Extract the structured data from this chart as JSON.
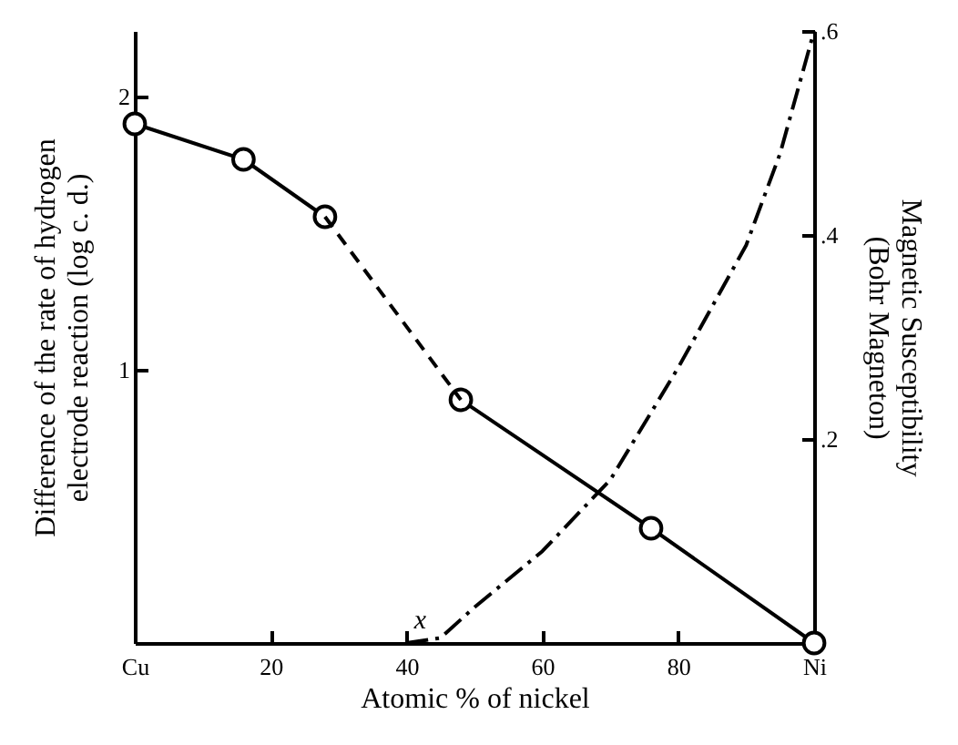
{
  "chart_data": {
    "type": "line",
    "xlabel": "Atomic % of nickel",
    "ylabel": "Difference of the rate of hydrogen electrode reaction (log c. d.)",
    "y2label": "Magnetic Susceptibility (Bohr Magneton)",
    "xlim": [
      0,
      100
    ],
    "xticks": [
      {
        "value": 0,
        "label": "Cu"
      },
      20,
      40,
      60,
      80,
      {
        "value": 100,
        "label": "Ni"
      }
    ],
    "ylim": [
      0,
      2.24
    ],
    "yticks": [
      1,
      2
    ],
    "y2lim": [
      0,
      0.6
    ],
    "y2ticks": [
      {
        "value": 0.2,
        "label": ".2"
      },
      {
        "value": 0.4,
        "label": ".4"
      },
      {
        "value": 0.6,
        "label": ".6"
      }
    ],
    "grid": false,
    "series": [
      {
        "color": "#000000",
        "marker": "circle",
        "line_style": "solid",
        "x": [
          0,
          16,
          28
        ],
        "values": [
          1.9,
          1.77,
          1.56
        ]
      },
      {
        "color": "#000000",
        "marker": "circle",
        "line_style": "solid",
        "x": [
          48,
          76,
          100
        ],
        "values": [
          0.89,
          0.42,
          0
        ]
      },
      {
        "color": "#000000",
        "marker": "none",
        "line_style": "dashed",
        "x": [
          28,
          48
        ],
        "values": [
          1.56,
          0.89
        ]
      },
      {
        "color": "#000000",
        "marker": "none",
        "line_style": "dashdot",
        "axis": "y2",
        "x": [
          40,
          45,
          50,
          60,
          70,
          80,
          90,
          95,
          100
        ],
        "values": [
          0,
          0.005,
          0.035,
          0.09,
          0.16,
          0.27,
          0.39,
          0.48,
          0.6
        ]
      }
    ],
    "annotations": [
      {
        "text": "x",
        "x": 42,
        "y": 0.02
      }
    ]
  }
}
